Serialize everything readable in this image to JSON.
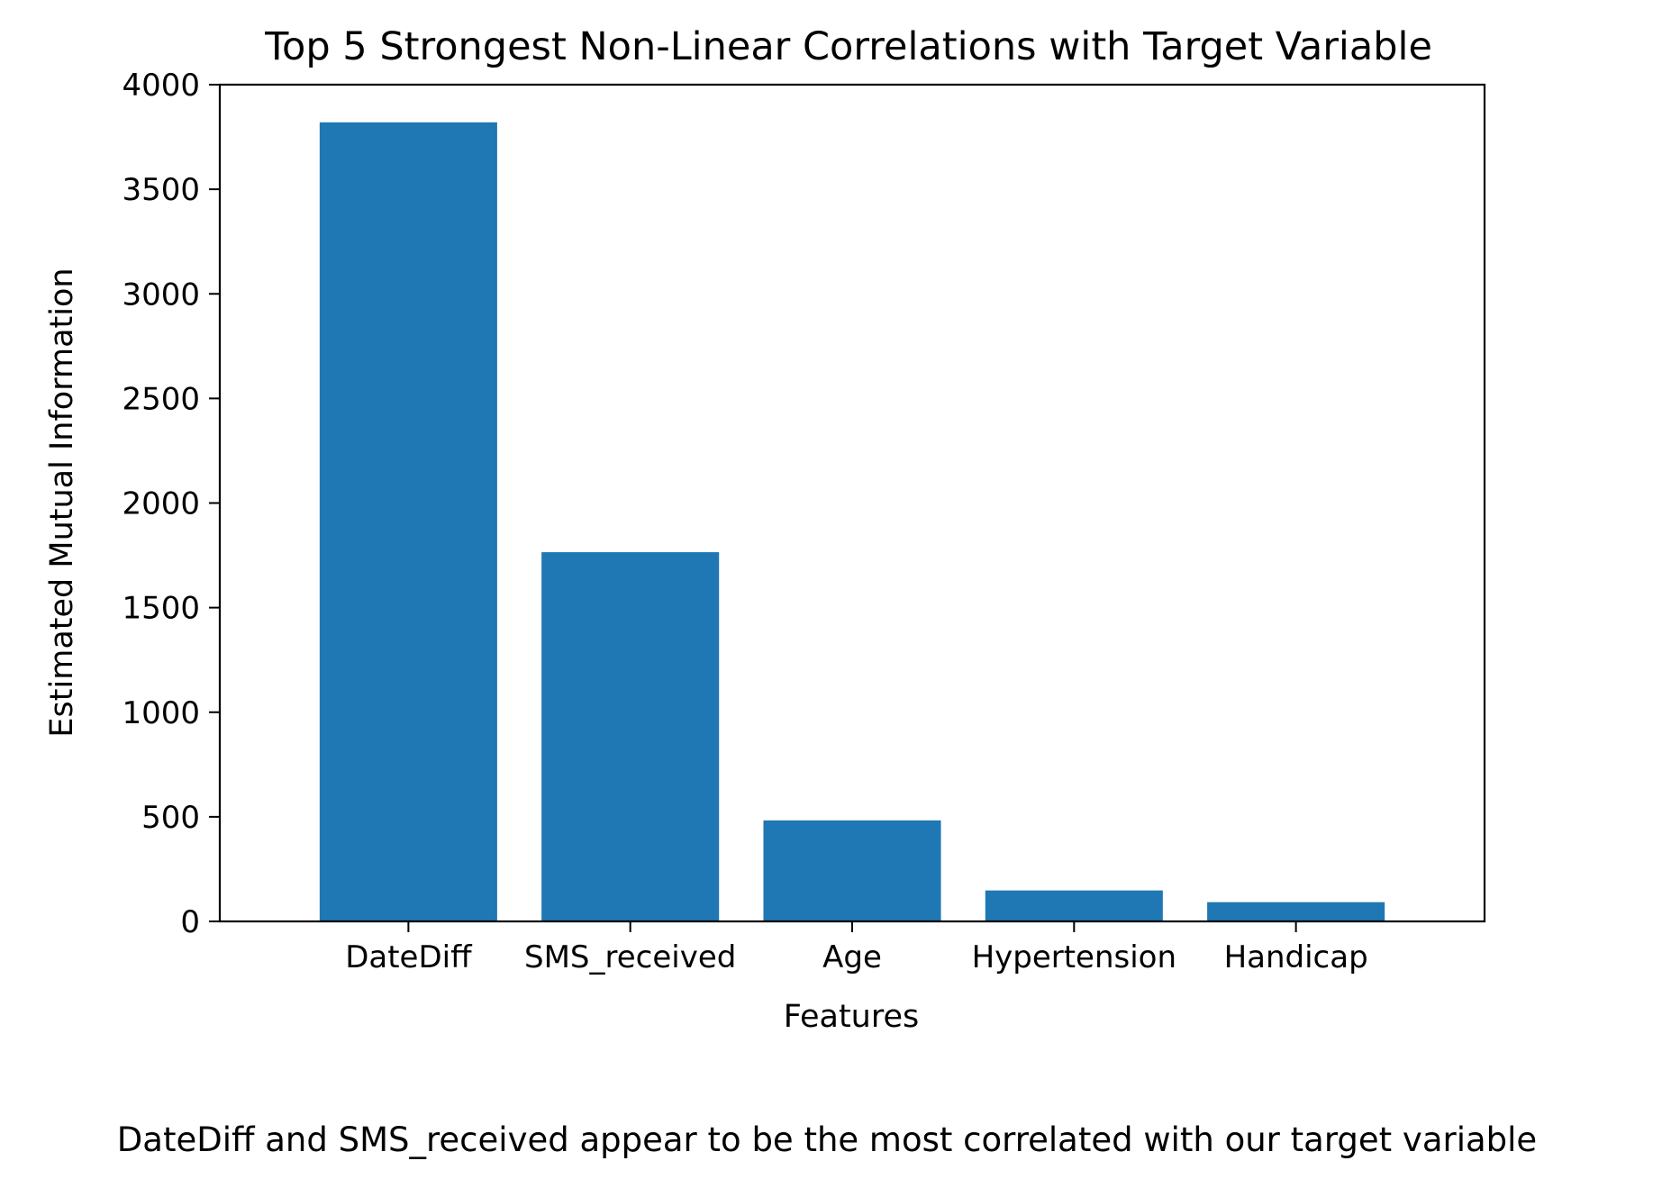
{
  "chart_data": {
    "type": "bar",
    "title": "Top 5 Strongest Non-Linear Correlations with Target Variable",
    "xlabel": "Features",
    "ylabel": "Estimated Mutual Information",
    "categories": [
      "DateDiff",
      "SMS_received",
      "Age",
      "Hypertension",
      "Handicap"
    ],
    "values": [
      3820,
      1765,
      483,
      148,
      92
    ],
    "ylim": [
      0,
      4000
    ],
    "yticks": [
      0,
      500,
      1000,
      1500,
      2000,
      2500,
      3000,
      3500,
      4000
    ],
    "bar_color": "#1f77b4",
    "grid": false,
    "legend": "none"
  },
  "caption": "DateDiff and SMS_received appear to be the most correlated with our target variable"
}
